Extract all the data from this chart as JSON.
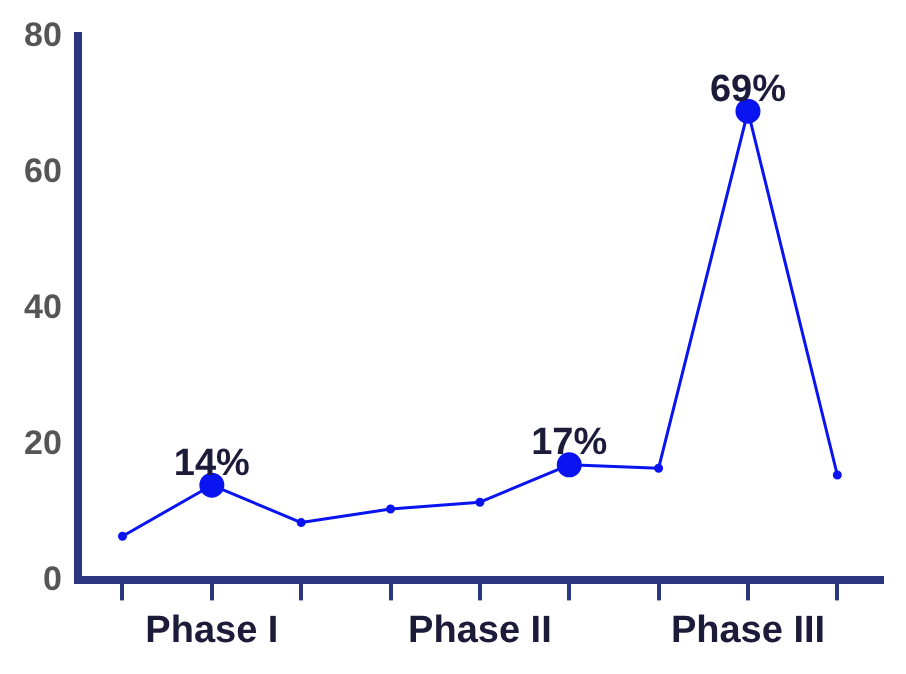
{
  "chart_data": {
    "type": "line",
    "categories": [
      null,
      "Phase I",
      null,
      null,
      "Phase II",
      null,
      null,
      "Phase III",
      null
    ],
    "series": [
      {
        "color": "#0a14f0",
        "values": [
          6.5,
          14,
          8.5,
          10.5,
          11.5,
          17,
          16.5,
          69,
          15.5
        ],
        "value_labels": [
          null,
          "14%",
          null,
          null,
          null,
          "17%",
          null,
          "69%",
          null
        ]
      }
    ],
    "ylim": [
      0,
      80
    ],
    "yticks": [
      0,
      20,
      40,
      60,
      80
    ],
    "grid": false,
    "legend": false,
    "marker": "circle",
    "line_style": "solid"
  }
}
